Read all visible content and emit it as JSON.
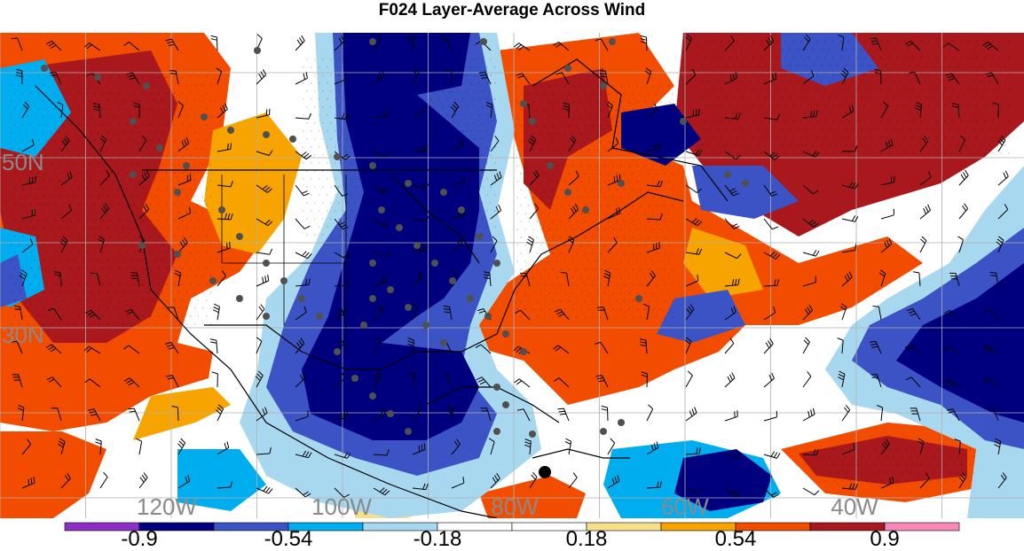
{
  "title": "F024 Layer-Average Across Wind",
  "map": {
    "lat_labels": [
      "50N",
      "30N"
    ],
    "lon_labels": [
      "120W",
      "100W",
      "80W",
      "60W",
      "40W"
    ],
    "label_color": "#8a8a8a"
  },
  "colorbar": {
    "colors": [
      "#8d2fc4",
      "#00007f",
      "#3b53c4",
      "#00aeef",
      "#a8d8f0",
      "#ffffff",
      "#ffffff",
      "#f7e08c",
      "#f7a300",
      "#f24c00",
      "#a8181c",
      "#f58ab8"
    ],
    "tick_labels": [
      "-0.9",
      "-0.54",
      "-0.18",
      "0.18",
      "0.54",
      "0.9"
    ]
  },
  "colors": {
    "strong_negative": "#00007f",
    "negative": "#3b53c4",
    "weak_negative": "#00aeef",
    "very_weak_negative": "#a8d8f0",
    "weak_positive": "#f7e08c",
    "positive": "#f7a300",
    "strong_positive": "#f24c00",
    "very_strong_positive": "#a8181c"
  }
}
